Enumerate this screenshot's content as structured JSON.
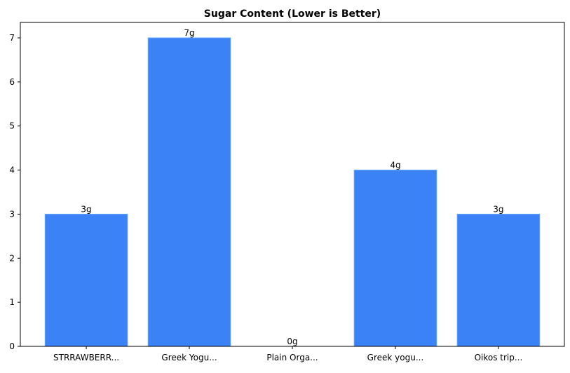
{
  "chart_data": {
    "type": "bar",
    "title": "Sugar Content (Lower is Better)",
    "xlabel": "",
    "ylabel": "",
    "categories": [
      "STRRAWBERR...",
      "Greek Yogu...",
      "Plain Orga...",
      "Greek yogu...",
      "Oikos trip..."
    ],
    "values": [
      3,
      7,
      0,
      4,
      3
    ],
    "data_labels": [
      "3g",
      "7g",
      "0g",
      "4g",
      "3g"
    ],
    "yticks": [
      0,
      1,
      2,
      3,
      4,
      5,
      6,
      7
    ],
    "ylim": [
      0,
      7.35
    ],
    "grid": false,
    "bar_color": "#3b82f6",
    "bar_edge_color": "#60a5fa"
  }
}
